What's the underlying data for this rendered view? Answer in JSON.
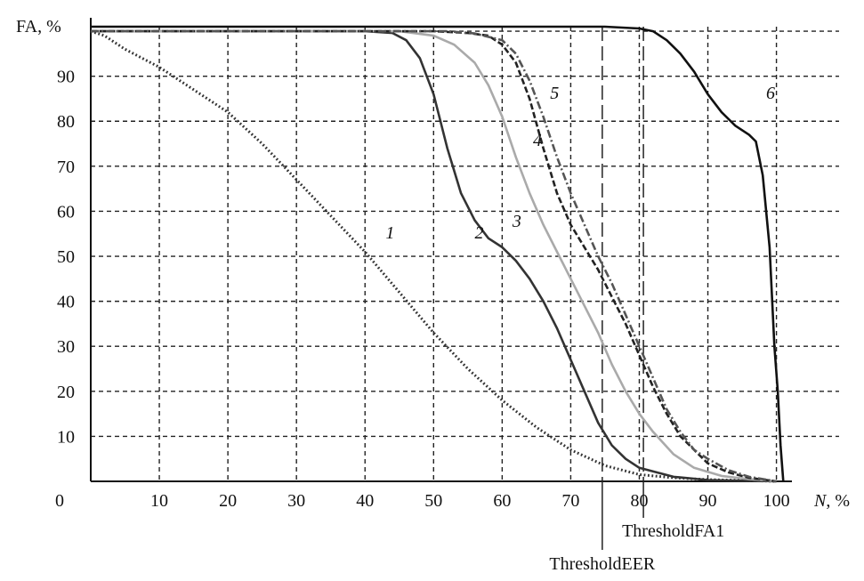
{
  "chart_data": {
    "type": "line",
    "title": "",
    "xlabel": "N, %",
    "ylabel": "FA, %",
    "origin_label": "0",
    "xlim": [
      0,
      102
    ],
    "ylim": [
      0,
      101
    ],
    "x_ticks": [
      10,
      20,
      30,
      40,
      50,
      60,
      70,
      80,
      90,
      100
    ],
    "y_ticks": [
      10,
      20,
      30,
      40,
      50,
      60,
      70,
      80,
      90
    ],
    "grid": true,
    "series": [
      {
        "name": "1",
        "color": "#333333",
        "style": "dotted",
        "points": [
          [
            0,
            100
          ],
          [
            2,
            99
          ],
          [
            5,
            96
          ],
          [
            10,
            92
          ],
          [
            15,
            87
          ],
          [
            20,
            82
          ],
          [
            25,
            75
          ],
          [
            30,
            67
          ],
          [
            35,
            59
          ],
          [
            40,
            51
          ],
          [
            45,
            42
          ],
          [
            50,
            33
          ],
          [
            55,
            25
          ],
          [
            60,
            18
          ],
          [
            65,
            12
          ],
          [
            70,
            7
          ],
          [
            75,
            3.5
          ],
          [
            80,
            1.5
          ],
          [
            85,
            0.8
          ],
          [
            90,
            0.4
          ],
          [
            95,
            0.2
          ],
          [
            100,
            0
          ]
        ]
      },
      {
        "name": "2",
        "color": "#333333",
        "style": "solid",
        "points": [
          [
            0,
            100
          ],
          [
            40,
            100
          ],
          [
            44,
            99.6
          ],
          [
            46,
            98
          ],
          [
            48,
            94
          ],
          [
            50,
            86
          ],
          [
            52,
            74
          ],
          [
            54,
            64
          ],
          [
            56,
            58
          ],
          [
            58,
            54
          ],
          [
            60,
            52
          ],
          [
            62,
            49
          ],
          [
            64,
            45
          ],
          [
            66,
            40
          ],
          [
            68,
            34
          ],
          [
            70,
            27
          ],
          [
            72,
            20
          ],
          [
            74,
            13
          ],
          [
            76,
            8
          ],
          [
            78,
            5
          ],
          [
            80,
            3
          ],
          [
            85,
            1
          ],
          [
            90,
            0.3
          ],
          [
            100,
            0
          ]
        ]
      },
      {
        "name": "3",
        "color": "#aaaaaa",
        "style": "solid",
        "points": [
          [
            0,
            100
          ],
          [
            45,
            100
          ],
          [
            50,
            99
          ],
          [
            53,
            97
          ],
          [
            56,
            93
          ],
          [
            58,
            88
          ],
          [
            60,
            81
          ],
          [
            62,
            72
          ],
          [
            64,
            64
          ],
          [
            66,
            57
          ],
          [
            68,
            51
          ],
          [
            70,
            45
          ],
          [
            72,
            39
          ],
          [
            74,
            33
          ],
          [
            76,
            26
          ],
          [
            78,
            20
          ],
          [
            80,
            15
          ],
          [
            82,
            11
          ],
          [
            85,
            6
          ],
          [
            88,
            3
          ],
          [
            92,
            1.2
          ],
          [
            96,
            0.5
          ],
          [
            100,
            0
          ]
        ]
      },
      {
        "name": "4",
        "color": "#222222",
        "style": "dashed",
        "points": [
          [
            0,
            100
          ],
          [
            50,
            100
          ],
          [
            55,
            99.6
          ],
          [
            58,
            99
          ],
          [
            60,
            97
          ],
          [
            62,
            93
          ],
          [
            64,
            85
          ],
          [
            66,
            74
          ],
          [
            68,
            64
          ],
          [
            70,
            57
          ],
          [
            72,
            52
          ],
          [
            74,
            47
          ],
          [
            76,
            41
          ],
          [
            78,
            35
          ],
          [
            80,
            28
          ],
          [
            82,
            21
          ],
          [
            84,
            15
          ],
          [
            86,
            10
          ],
          [
            88,
            7
          ],
          [
            90,
            4
          ],
          [
            93,
            2
          ],
          [
            96,
            0.8
          ],
          [
            100,
            0
          ]
        ]
      },
      {
        "name": "5",
        "color": "#555555",
        "style": "dashdot",
        "points": [
          [
            0,
            100
          ],
          [
            52,
            100
          ],
          [
            56,
            99.5
          ],
          [
            60,
            98
          ],
          [
            62,
            95
          ],
          [
            64,
            89
          ],
          [
            66,
            81
          ],
          [
            68,
            72
          ],
          [
            70,
            64
          ],
          [
            72,
            57
          ],
          [
            74,
            50
          ],
          [
            76,
            44
          ],
          [
            78,
            37
          ],
          [
            80,
            30
          ],
          [
            82,
            23
          ],
          [
            84,
            16
          ],
          [
            86,
            11
          ],
          [
            88,
            7
          ],
          [
            90,
            5
          ],
          [
            93,
            2.5
          ],
          [
            96,
            1
          ],
          [
            100,
            0
          ]
        ]
      },
      {
        "name": "6",
        "color": "#111111",
        "style": "solid",
        "points": [
          [
            0,
            101
          ],
          [
            75,
            101
          ],
          [
            80,
            100.6
          ],
          [
            82,
            100
          ],
          [
            84,
            98
          ],
          [
            86,
            95
          ],
          [
            88,
            91
          ],
          [
            90,
            86
          ],
          [
            92,
            82
          ],
          [
            94,
            79
          ],
          [
            96,
            77
          ],
          [
            97,
            75.5
          ],
          [
            98,
            68
          ],
          [
            99,
            52
          ],
          [
            99.7,
            30
          ],
          [
            100.2,
            20
          ],
          [
            100.6,
            8
          ],
          [
            101,
            0
          ]
        ]
      }
    ],
    "thresholds": [
      {
        "label": "ThresholdEER",
        "x": 74.6,
        "style": "long-dash"
      },
      {
        "label": "ThresholdFA1",
        "x": 80.6,
        "style": "long-dash"
      }
    ],
    "curve_label_positions": [
      {
        "name": "1",
        "x": 43,
        "y": 54
      },
      {
        "name": "2",
        "x": 56,
        "y": 54
      },
      {
        "name": "3",
        "x": 61.5,
        "y": 56.5
      },
      {
        "name": "4",
        "x": 64.5,
        "y": 74.5
      },
      {
        "name": "5",
        "x": 67,
        "y": 85
      },
      {
        "name": "6",
        "x": 98.5,
        "y": 85
      }
    ]
  }
}
